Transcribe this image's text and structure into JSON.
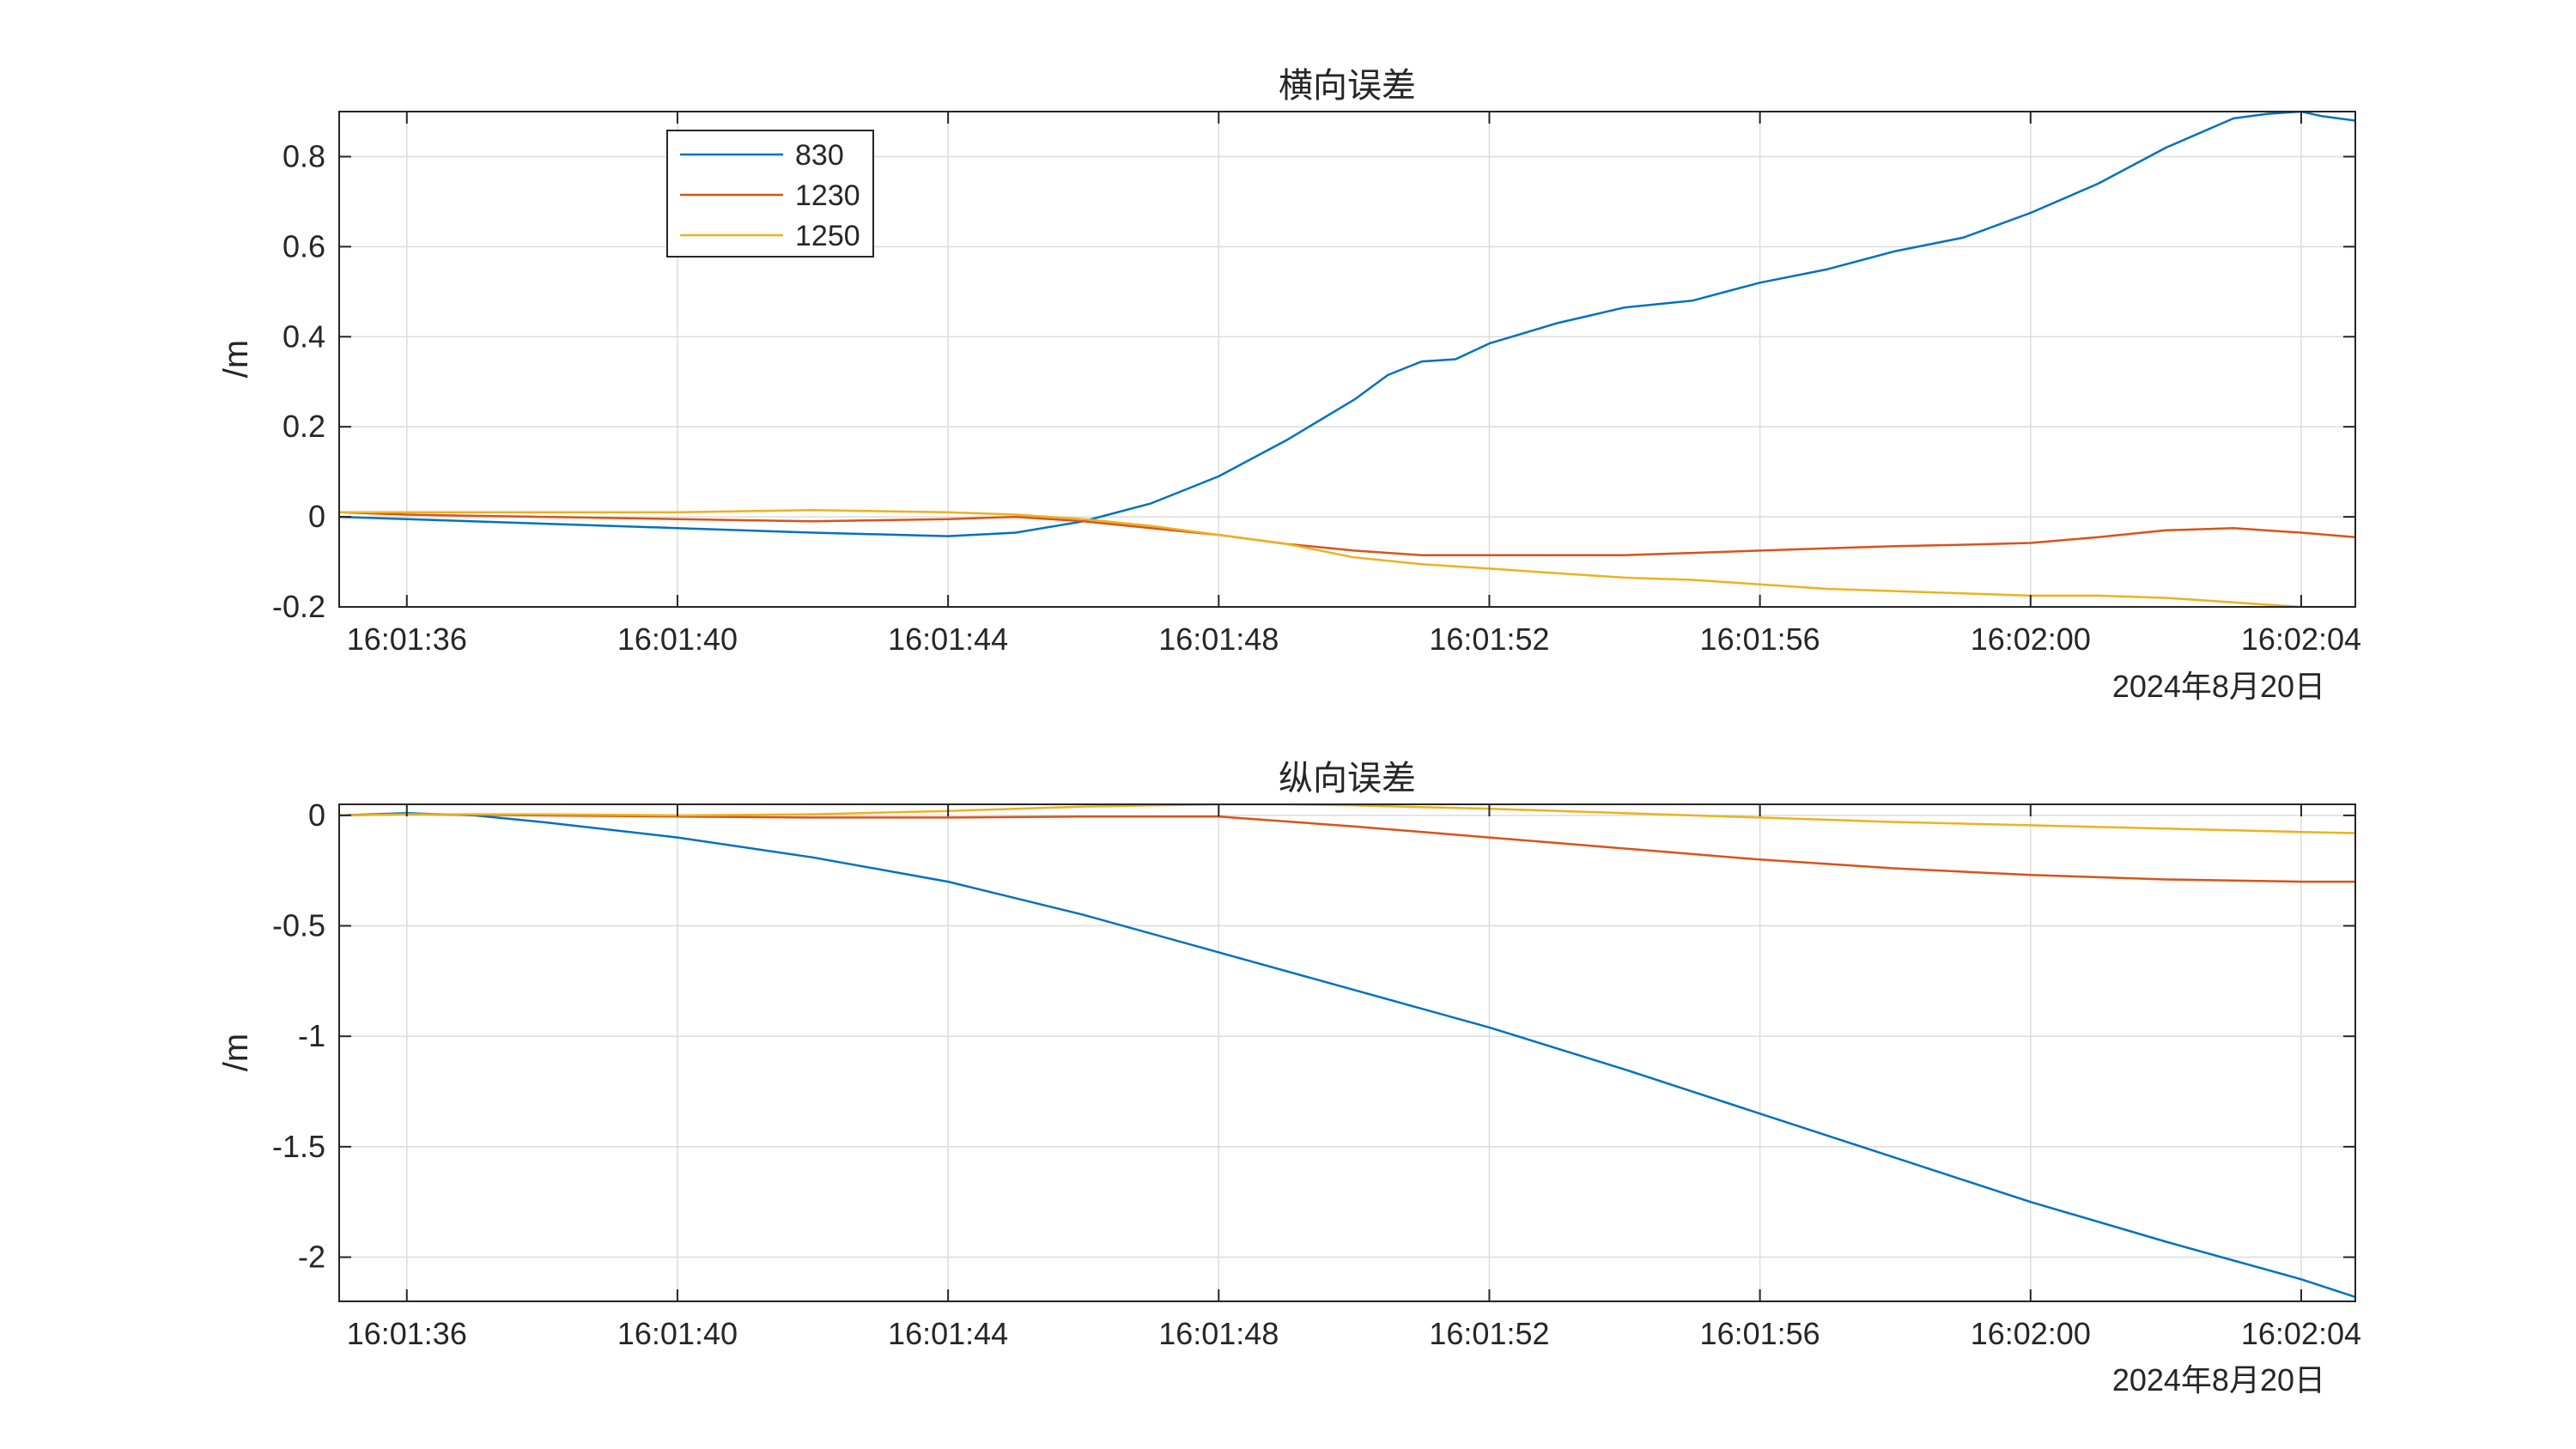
{
  "chart_data": [
    {
      "type": "line",
      "title": "横向误差",
      "xlabel": "",
      "ylabel": "/m",
      "date_label": "2024年8月20日",
      "xlim": [
        95.0,
        124.8
      ],
      "ylim": [
        -0.2,
        0.9
      ],
      "x_ticks": [
        96,
        100,
        104,
        108,
        112,
        116,
        120,
        124
      ],
      "x_tick_labels": [
        "16:01:36",
        "16:01:40",
        "16:01:44",
        "16:01:48",
        "16:01:52",
        "16:01:56",
        "16:02:00",
        "16:02:04"
      ],
      "y_ticks": [
        -0.2,
        0,
        0.2,
        0.4,
        0.6,
        0.8
      ],
      "y_tick_labels": [
        "-0.2",
        "0",
        "0.2",
        "0.4",
        "0.6",
        "0.8"
      ],
      "grid": true,
      "legend": {
        "placement": "top-left",
        "entries": [
          "830",
          "1230",
          "1250"
        ]
      },
      "series": [
        {
          "name": "830",
          "color": "#0072BD",
          "x": [
            95,
            96,
            98,
            100,
            102,
            104,
            105,
            106,
            107,
            108,
            109,
            110,
            110.5,
            111,
            111.5,
            112,
            113,
            114,
            115,
            116,
            117,
            118,
            119,
            120,
            121,
            122,
            123,
            123.5,
            124,
            124.3,
            124.8
          ],
          "y": [
            0.0,
            -0.005,
            -0.015,
            -0.025,
            -0.035,
            -0.043,
            -0.035,
            -0.01,
            0.03,
            0.09,
            0.17,
            0.26,
            0.315,
            0.345,
            0.35,
            0.385,
            0.43,
            0.465,
            0.48,
            0.52,
            0.55,
            0.59,
            0.62,
            0.675,
            0.74,
            0.82,
            0.885,
            0.895,
            0.9,
            0.89,
            0.88
          ]
        },
        {
          "name": "1230",
          "color": "#D95319",
          "x": [
            95,
            96,
            98,
            100,
            102,
            104,
            105,
            106,
            107,
            108,
            109,
            110,
            111,
            112,
            113,
            114,
            115,
            116,
            117,
            118,
            119,
            120,
            121,
            122,
            123,
            124,
            124.8
          ],
          "y": [
            0.01,
            0.005,
            0.0,
            -0.005,
            -0.01,
            -0.005,
            0.0,
            -0.01,
            -0.025,
            -0.04,
            -0.06,
            -0.075,
            -0.085,
            -0.085,
            -0.085,
            -0.085,
            -0.08,
            -0.075,
            -0.07,
            -0.065,
            -0.062,
            -0.058,
            -0.045,
            -0.03,
            -0.025,
            -0.035,
            -0.045
          ]
        },
        {
          "name": "1250",
          "color": "#EDB120",
          "x": [
            95,
            96,
            98,
            100,
            102,
            104,
            105,
            106,
            107,
            108,
            109,
            110,
            111,
            112,
            113,
            114,
            115,
            116,
            117,
            118,
            119,
            120,
            121,
            122,
            123,
            124,
            124.8
          ],
          "y": [
            0.01,
            0.01,
            0.01,
            0.01,
            0.015,
            0.01,
            0.005,
            -0.005,
            -0.02,
            -0.04,
            -0.06,
            -0.09,
            -0.105,
            -0.115,
            -0.125,
            -0.135,
            -0.14,
            -0.15,
            -0.16,
            -0.165,
            -0.17,
            -0.175,
            -0.175,
            -0.18,
            -0.19,
            -0.2,
            -0.2
          ]
        }
      ]
    },
    {
      "type": "line",
      "title": "纵向误差",
      "xlabel": "",
      "ylabel": "/m",
      "date_label": "2024年8月20日",
      "xlim": [
        95.0,
        124.8
      ],
      "ylim": [
        -2.2,
        0.05
      ],
      "x_ticks": [
        96,
        100,
        104,
        108,
        112,
        116,
        120,
        124
      ],
      "x_tick_labels": [
        "16:01:36",
        "16:01:40",
        "16:01:44",
        "16:01:48",
        "16:01:52",
        "16:01:56",
        "16:02:00",
        "16:02:04"
      ],
      "y_ticks": [
        -2,
        -1.5,
        -1,
        -0.5,
        0
      ],
      "y_tick_labels": [
        "-2",
        "-1.5",
        "-1",
        "-0.5",
        "0"
      ],
      "grid": true,
      "series": [
        {
          "name": "830",
          "color": "#0072BD",
          "x": [
            95,
            96,
            97,
            98,
            100,
            102,
            104,
            106,
            108,
            110,
            112,
            114,
            116,
            118,
            120,
            122,
            124,
            124.8
          ],
          "y": [
            0.0,
            0.01,
            0.0,
            -0.03,
            -0.1,
            -0.19,
            -0.3,
            -0.45,
            -0.62,
            -0.79,
            -0.96,
            -1.15,
            -1.35,
            -1.55,
            -1.75,
            -1.93,
            -2.1,
            -2.18
          ]
        },
        {
          "name": "1230",
          "color": "#D95319",
          "x": [
            95,
            96,
            98,
            100,
            102,
            104,
            106,
            108,
            110,
            112,
            114,
            116,
            118,
            120,
            122,
            124,
            124.8
          ],
          "y": [
            0.0,
            0.005,
            0.0,
            -0.005,
            -0.01,
            -0.01,
            -0.005,
            -0.005,
            -0.05,
            -0.1,
            -0.15,
            -0.2,
            -0.24,
            -0.27,
            -0.29,
            -0.3,
            -0.3
          ]
        },
        {
          "name": "1250",
          "color": "#EDB120",
          "x": [
            95,
            96,
            98,
            100,
            102,
            104,
            106,
            107,
            108,
            109,
            110,
            112,
            114,
            116,
            118,
            120,
            122,
            124,
            124.8
          ],
          "y": [
            0.0,
            0.005,
            0.005,
            0.0,
            0.005,
            0.02,
            0.04,
            0.045,
            0.05,
            0.05,
            0.045,
            0.03,
            0.01,
            -0.01,
            -0.03,
            -0.045,
            -0.06,
            -0.075,
            -0.08
          ]
        }
      ]
    }
  ]
}
